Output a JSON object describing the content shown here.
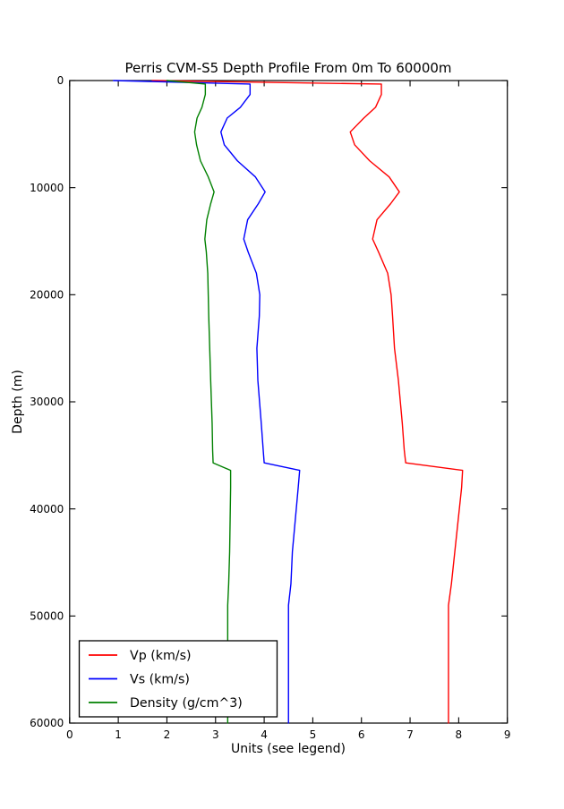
{
  "chart_data": {
    "type": "line",
    "title": "Perris CVM-S5 Depth Profile From 0m To 60000m",
    "xlabel": "Units (see legend)",
    "ylabel": "Depth (m)",
    "xlim": [
      0,
      9
    ],
    "ylim": [
      60000,
      0
    ],
    "xticks": [
      0,
      1,
      2,
      3,
      4,
      5,
      6,
      7,
      8,
      9
    ],
    "yticks": [
      0,
      10000,
      20000,
      30000,
      40000,
      50000,
      60000
    ],
    "grid": false,
    "tick_direction": "in",
    "legend_position": "lower left",
    "axis_color": "#000000",
    "background_color": "#ffffff",
    "depth_m": [
      0,
      330,
      1300,
      2500,
      3500,
      4800,
      6000,
      7500,
      9000,
      10400,
      11500,
      13000,
      14800,
      16000,
      18000,
      20000,
      22000,
      25000,
      28000,
      32000,
      34500,
      35700,
      36400,
      38000,
      41000,
      44000,
      47000,
      49000,
      52000,
      60000
    ],
    "series": [
      {
        "name": "Vp (km/s)",
        "color": "#ff0000",
        "values": [
          1.7,
          6.41,
          6.41,
          6.29,
          6.05,
          5.77,
          5.86,
          6.17,
          6.57,
          6.78,
          6.6,
          6.32,
          6.23,
          6.35,
          6.54,
          6.61,
          6.64,
          6.68,
          6.76,
          6.84,
          6.88,
          6.91,
          8.08,
          8.06,
          7.99,
          7.92,
          7.85,
          7.79,
          7.79,
          7.79
        ]
      },
      {
        "name": "Vs (km/s)",
        "color": "#0000ff",
        "values": [
          0.9,
          3.71,
          3.71,
          3.51,
          3.24,
          3.11,
          3.18,
          3.45,
          3.82,
          4.02,
          3.88,
          3.66,
          3.58,
          3.67,
          3.84,
          3.91,
          3.9,
          3.85,
          3.87,
          3.94,
          3.98,
          4.0,
          4.73,
          4.7,
          4.64,
          4.58,
          4.55,
          4.5,
          4.5,
          4.5
        ]
      },
      {
        "name": "Density (g/cm^3)",
        "color": "#008000",
        "values": [
          2.0,
          2.79,
          2.79,
          2.72,
          2.62,
          2.57,
          2.61,
          2.69,
          2.85,
          2.97,
          2.9,
          2.82,
          2.78,
          2.81,
          2.84,
          2.85,
          2.86,
          2.88,
          2.9,
          2.93,
          2.94,
          2.95,
          3.31,
          3.31,
          3.3,
          3.29,
          3.27,
          3.25,
          3.25,
          3.25
        ]
      }
    ]
  }
}
